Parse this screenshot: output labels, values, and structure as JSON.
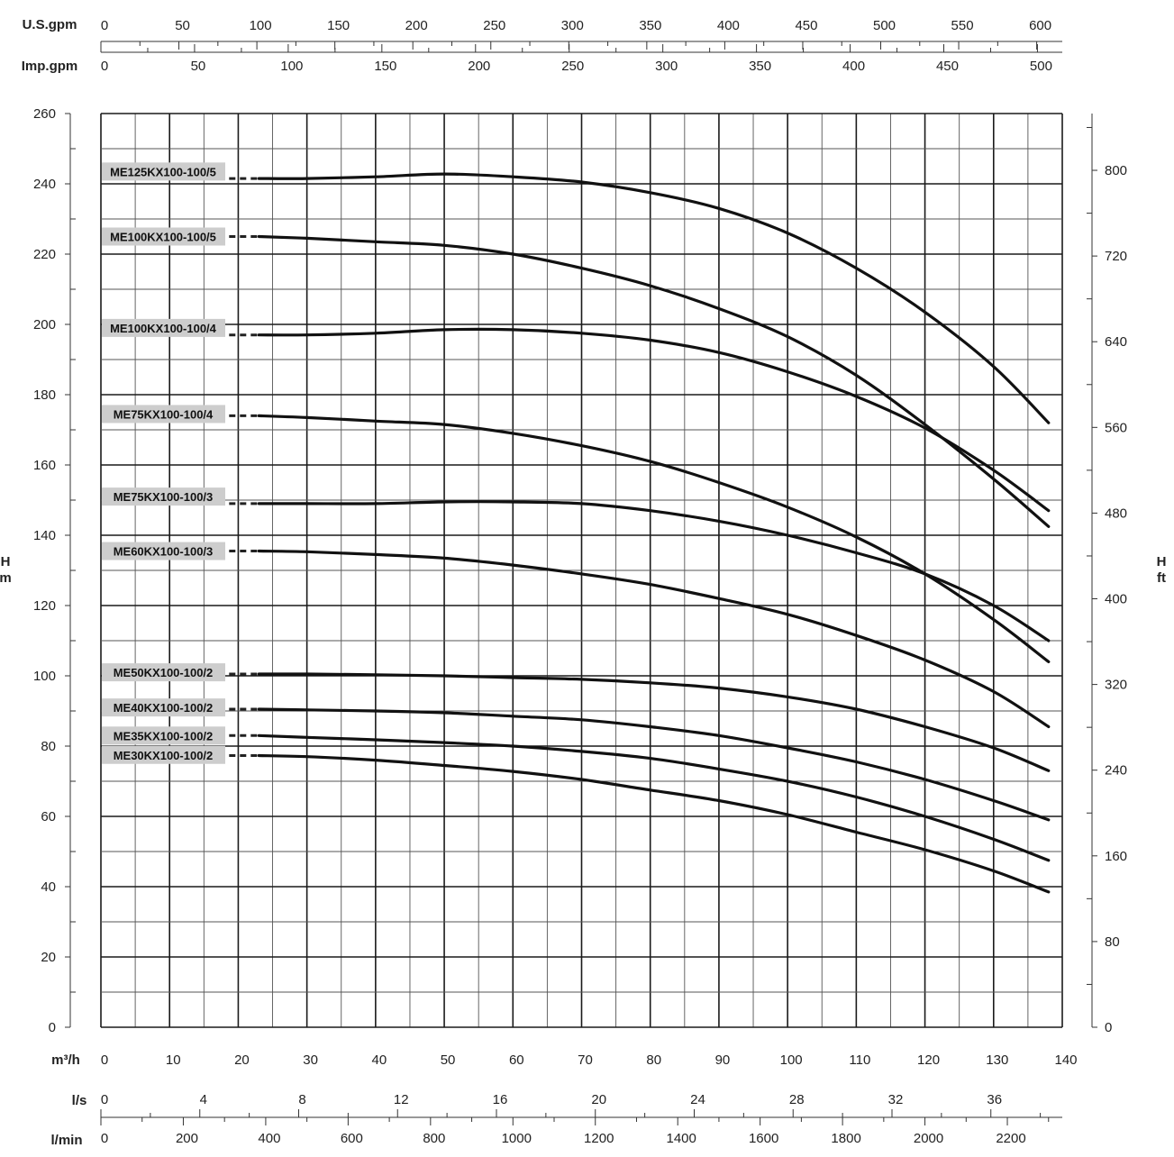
{
  "chart_data": {
    "type": "line",
    "x_unit": "m³/h",
    "x_ticks": [
      0,
      10,
      20,
      30,
      40,
      50,
      60,
      70,
      80,
      90,
      100,
      110,
      120,
      130,
      140
    ],
    "xlim": [
      0,
      140
    ],
    "y_unit_left": "H",
    "y_unit_left_sub": "m",
    "y_ticks_left": [
      0,
      20,
      40,
      60,
      80,
      100,
      120,
      140,
      160,
      180,
      200,
      220,
      240,
      260
    ],
    "ylim": [
      0,
      260
    ],
    "y_unit_right": "H",
    "y_unit_right_sub": "ft",
    "y_ticks_right": [
      0,
      80,
      160,
      240,
      320,
      400,
      480,
      560,
      640,
      720,
      800
    ],
    "aux_axes_top": [
      {
        "unit": "U.S.gpm",
        "ticks": [
          0,
          50,
          100,
          150,
          200,
          250,
          300,
          350,
          400,
          450,
          500,
          550,
          600
        ]
      },
      {
        "unit": "Imp.gpm",
        "ticks": [
          0,
          50,
          100,
          150,
          200,
          250,
          300,
          350,
          400,
          450,
          500
        ]
      }
    ],
    "aux_axes_bottom": [
      {
        "unit": "l/s",
        "ticks": [
          0,
          4,
          8,
          12,
          16,
          20,
          24,
          28,
          32,
          36
        ]
      },
      {
        "unit": "l/min",
        "ticks": [
          0,
          200,
          400,
          600,
          800,
          1000,
          1200,
          1400,
          1600,
          1800,
          2000,
          2200
        ]
      }
    ],
    "grid": true,
    "series": [
      {
        "name": "ME125KX100-100/5",
        "label_y": 243.5,
        "points": [
          [
            23,
            241.5
          ],
          [
            30,
            241.5
          ],
          [
            40,
            242
          ],
          [
            50,
            242.8
          ],
          [
            60,
            242
          ],
          [
            70,
            240.5
          ],
          [
            80,
            237.5
          ],
          [
            90,
            233
          ],
          [
            100,
            226
          ],
          [
            110,
            216
          ],
          [
            120,
            203.5
          ],
          [
            130,
            188
          ],
          [
            138,
            172
          ]
        ]
      },
      {
        "name": "ME100KX100-100/5",
        "label_y": 225,
        "points": [
          [
            23,
            225
          ],
          [
            30,
            224.5
          ],
          [
            40,
            223.5
          ],
          [
            50,
            222.5
          ],
          [
            60,
            220
          ],
          [
            70,
            216
          ],
          [
            80,
            211
          ],
          [
            90,
            204.5
          ],
          [
            100,
            196.5
          ],
          [
            110,
            185.5
          ],
          [
            120,
            171.5
          ],
          [
            130,
            156
          ],
          [
            138,
            142.5
          ]
        ]
      },
      {
        "name": "ME100KX100-100/4",
        "label_y": 199,
        "points": [
          [
            23,
            197
          ],
          [
            30,
            197
          ],
          [
            40,
            197.5
          ],
          [
            50,
            198.5
          ],
          [
            60,
            198.5
          ],
          [
            70,
            197.5
          ],
          [
            80,
            195.5
          ],
          [
            90,
            192
          ],
          [
            100,
            186.5
          ],
          [
            110,
            179.5
          ],
          [
            120,
            170.5
          ],
          [
            130,
            158.5
          ],
          [
            138,
            147
          ]
        ]
      },
      {
        "name": "ME75KX100-100/4",
        "label_y": 174.5,
        "points": [
          [
            23,
            174
          ],
          [
            30,
            173.5
          ],
          [
            40,
            172.5
          ],
          [
            50,
            171.5
          ],
          [
            60,
            169
          ],
          [
            70,
            165.5
          ],
          [
            80,
            161
          ],
          [
            90,
            155
          ],
          [
            100,
            148
          ],
          [
            110,
            139.5
          ],
          [
            120,
            129
          ],
          [
            130,
            116
          ],
          [
            138,
            104
          ]
        ]
      },
      {
        "name": "ME75KX100-100/3",
        "label_y": 151,
        "points": [
          [
            23,
            149
          ],
          [
            30,
            149
          ],
          [
            40,
            149
          ],
          [
            50,
            149.5
          ],
          [
            60,
            149.5
          ],
          [
            70,
            149
          ],
          [
            80,
            147
          ],
          [
            90,
            144
          ],
          [
            100,
            140
          ],
          [
            110,
            135
          ],
          [
            120,
            129
          ],
          [
            130,
            120
          ],
          [
            138,
            110
          ]
        ]
      },
      {
        "name": "ME60KX100-100/3",
        "label_y": 135.5,
        "points": [
          [
            23,
            135.5
          ],
          [
            30,
            135.3
          ],
          [
            40,
            134.5
          ],
          [
            50,
            133.5
          ],
          [
            60,
            131.5
          ],
          [
            70,
            129
          ],
          [
            80,
            126
          ],
          [
            90,
            122
          ],
          [
            100,
            117.5
          ],
          [
            110,
            111.5
          ],
          [
            120,
            104.5
          ],
          [
            130,
            95.5
          ],
          [
            138,
            85.5
          ]
        ]
      },
      {
        "name": "ME50KX100-100/2",
        "label_y": 101,
        "points": [
          [
            23,
            100.5
          ],
          [
            30,
            100.5
          ],
          [
            40,
            100.3
          ],
          [
            50,
            100
          ],
          [
            60,
            99.5
          ],
          [
            70,
            99
          ],
          [
            80,
            98
          ],
          [
            90,
            96.5
          ],
          [
            100,
            94
          ],
          [
            110,
            90.5
          ],
          [
            120,
            85.5
          ],
          [
            130,
            79.5
          ],
          [
            138,
            73
          ]
        ]
      },
      {
        "name": "ME40KX100-100/2",
        "label_y": 91,
        "points": [
          [
            23,
            90.5
          ],
          [
            30,
            90.3
          ],
          [
            40,
            90
          ],
          [
            50,
            89.5
          ],
          [
            60,
            88.5
          ],
          [
            70,
            87.5
          ],
          [
            80,
            85.5
          ],
          [
            90,
            83
          ],
          [
            100,
            79.5
          ],
          [
            110,
            75.5
          ],
          [
            120,
            70.5
          ],
          [
            130,
            64.5
          ],
          [
            138,
            59
          ]
        ]
      },
      {
        "name": "ME35KX100-100/2",
        "label_y": 83,
        "points": [
          [
            23,
            83
          ],
          [
            30,
            82.5
          ],
          [
            40,
            81.8
          ],
          [
            50,
            81
          ],
          [
            60,
            80
          ],
          [
            70,
            78.5
          ],
          [
            80,
            76.5
          ],
          [
            90,
            73.5
          ],
          [
            100,
            70
          ],
          [
            110,
            65.5
          ],
          [
            120,
            60
          ],
          [
            130,
            53.5
          ],
          [
            138,
            47.5
          ]
        ]
      },
      {
        "name": "ME30KX100-100/2",
        "label_y": 77.5,
        "points": [
          [
            23,
            77.3
          ],
          [
            30,
            77
          ],
          [
            40,
            76
          ],
          [
            50,
            74.5
          ],
          [
            60,
            72.8
          ],
          [
            70,
            70.5
          ],
          [
            80,
            67.5
          ],
          [
            90,
            64.5
          ],
          [
            100,
            60.5
          ],
          [
            110,
            55.5
          ],
          [
            120,
            50.5
          ],
          [
            130,
            44.5
          ],
          [
            138,
            38.5
          ]
        ]
      }
    ]
  }
}
